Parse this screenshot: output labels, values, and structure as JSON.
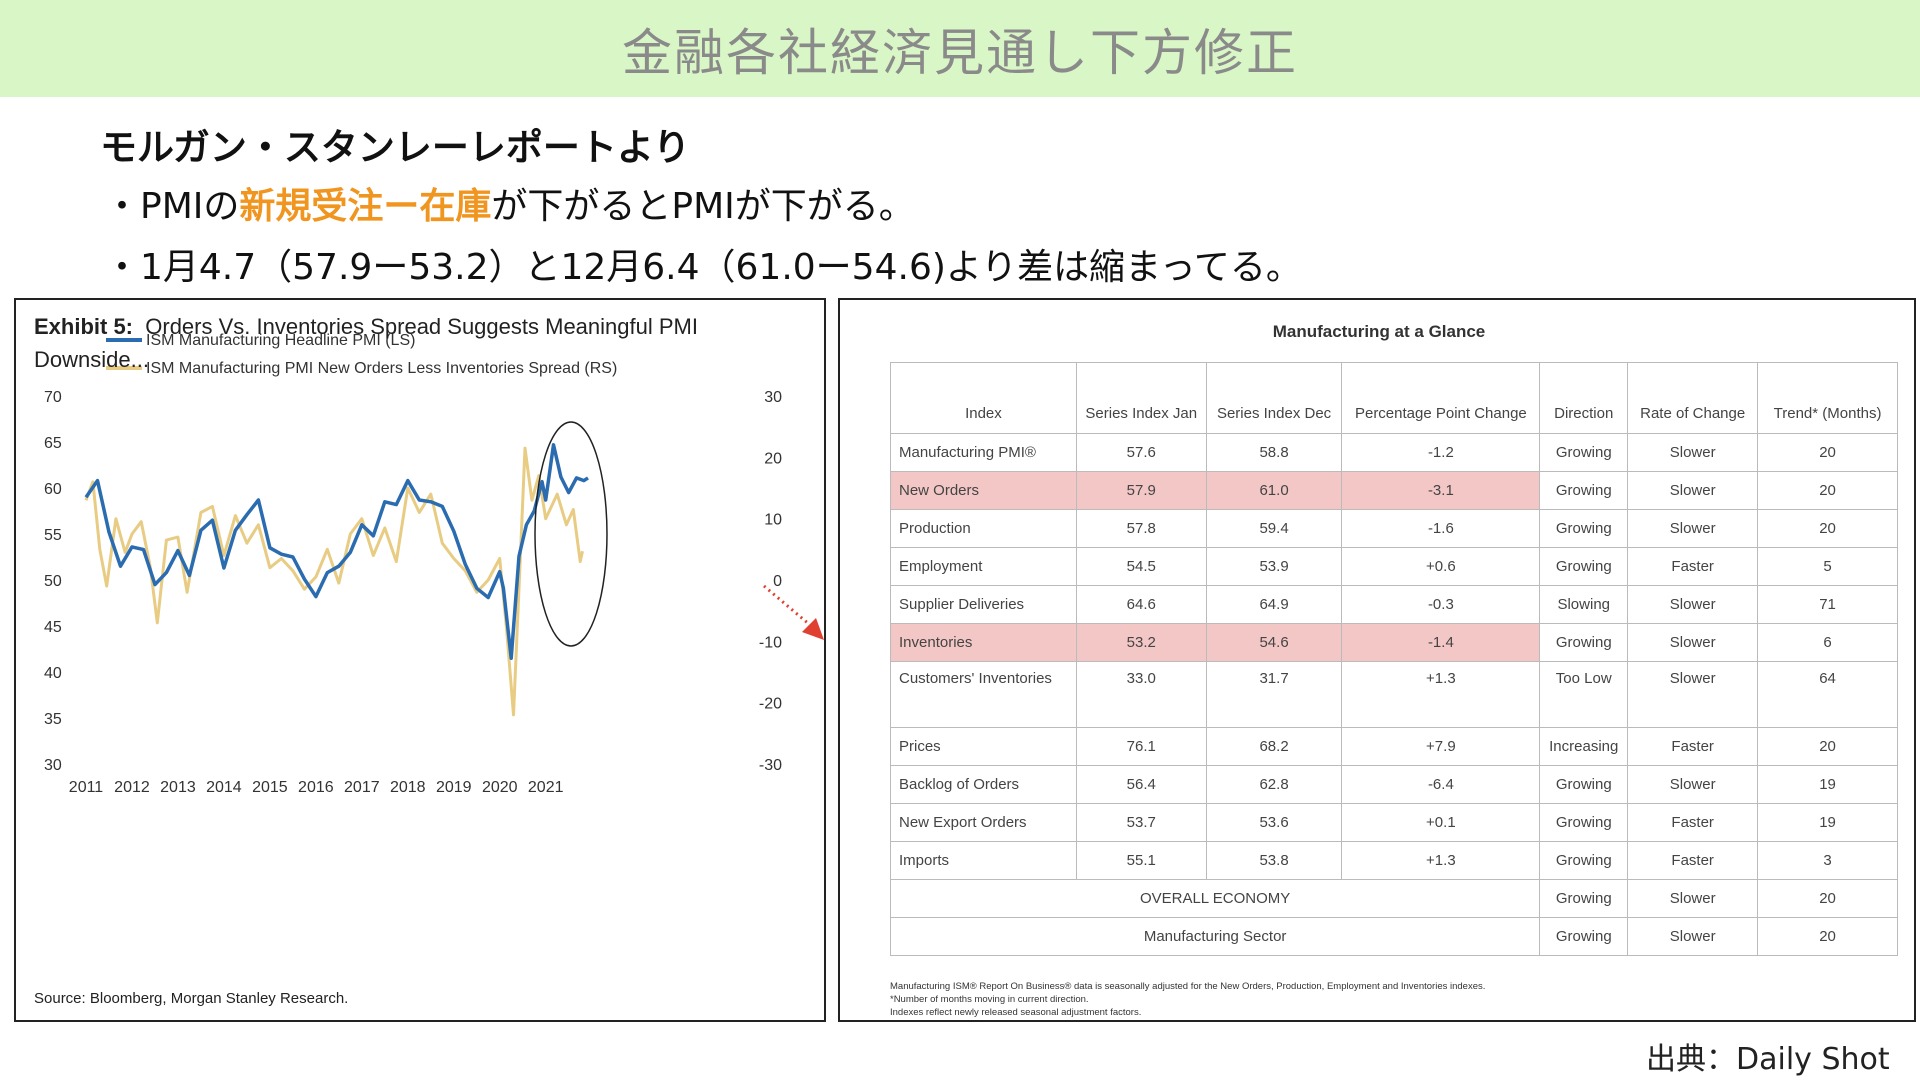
{
  "banner": {
    "title": "金融各社経済見通し下方修正"
  },
  "intro": {
    "lead": "モルガン・スタンレーレポートより",
    "bullet1": {
      "pre": "・PMIの",
      "highlight": "新規受注ー在庫",
      "post": "が下がるとPMIが下がる。"
    },
    "bullet2": "・1月4.7（57.9ー53.2）と12月6.4（61.0ー54.6)より差は縮まってる。"
  },
  "chart_data": {
    "type": "line",
    "title_bold": "Exhibit 5:",
    "title": "Orders Vs. Inventories Spread Suggests Meaningful PMI Downside...",
    "source": "Source: Bloomberg, Morgan Stanley Research.",
    "x_ticks": [
      "2011",
      "2012",
      "2013",
      "2014",
      "2015",
      "2016",
      "2017",
      "2018",
      "2019",
      "2020",
      "2021"
    ],
    "y_left": {
      "lim": [
        30,
        70
      ],
      "ticks": [
        "70",
        "65",
        "60",
        "55",
        "50",
        "45",
        "40",
        "35",
        "30"
      ]
    },
    "y_right": {
      "lim": [
        -30,
        30
      ],
      "ticks": [
        "30",
        "20",
        "10",
        "0",
        "-10",
        "-20",
        "-30"
      ]
    },
    "series": [
      {
        "name": "ISM Manufacturing Headline PMI (LS)",
        "color": "#2b6cb0",
        "axis": "left",
        "points": [
          [
            2011.0,
            59.0
          ],
          [
            2011.25,
            60.8
          ],
          [
            2011.5,
            55.2
          ],
          [
            2011.75,
            51.5
          ],
          [
            2012.0,
            53.6
          ],
          [
            2012.25,
            53.3
          ],
          [
            2012.5,
            49.5
          ],
          [
            2012.75,
            50.8
          ],
          [
            2013.0,
            53.2
          ],
          [
            2013.25,
            50.5
          ],
          [
            2013.5,
            55.4
          ],
          [
            2013.75,
            56.5
          ],
          [
            2014.0,
            51.3
          ],
          [
            2014.25,
            55.4
          ],
          [
            2014.5,
            57.1
          ],
          [
            2014.75,
            58.7
          ],
          [
            2015.0,
            53.5
          ],
          [
            2015.25,
            52.8
          ],
          [
            2015.5,
            52.5
          ],
          [
            2015.75,
            50.1
          ],
          [
            2016.0,
            48.2
          ],
          [
            2016.25,
            50.8
          ],
          [
            2016.5,
            51.5
          ],
          [
            2016.75,
            53.0
          ],
          [
            2017.0,
            56.0
          ],
          [
            2017.25,
            54.8
          ],
          [
            2017.5,
            58.5
          ],
          [
            2017.75,
            58.2
          ],
          [
            2018.0,
            60.8
          ],
          [
            2018.25,
            58.7
          ],
          [
            2018.5,
            58.5
          ],
          [
            2018.75,
            58.0
          ],
          [
            2019.0,
            55.3
          ],
          [
            2019.25,
            51.7
          ],
          [
            2019.5,
            49.1
          ],
          [
            2019.75,
            48.1
          ],
          [
            2020.0,
            50.9
          ],
          [
            2020.08,
            49.1
          ],
          [
            2020.25,
            41.5
          ],
          [
            2020.42,
            52.6
          ],
          [
            2020.58,
            56.0
          ],
          [
            2020.75,
            57.5
          ],
          [
            2020.92,
            60.7
          ],
          [
            2021.0,
            58.7
          ],
          [
            2021.17,
            64.7
          ],
          [
            2021.33,
            61.2
          ],
          [
            2021.5,
            59.5
          ],
          [
            2021.67,
            61.1
          ],
          [
            2021.83,
            60.8
          ],
          [
            2021.92,
            61.1
          ]
        ]
      },
      {
        "name": "ISM Manufacturing PMI New Orders Less Inventories Spread (RS)",
        "color": "#e8cc84",
        "axis": "right",
        "points": [
          [
            2011.0,
            13.0
          ],
          [
            2011.15,
            16.0
          ],
          [
            2011.3,
            5.0
          ],
          [
            2011.45,
            -1.0
          ],
          [
            2011.65,
            10.0
          ],
          [
            2011.85,
            4.5
          ],
          [
            2012.0,
            7.5
          ],
          [
            2012.2,
            9.5
          ],
          [
            2012.4,
            2.0
          ],
          [
            2012.55,
            -7.0
          ],
          [
            2012.75,
            6.5
          ],
          [
            2013.0,
            7.0
          ],
          [
            2013.2,
            -2.0
          ],
          [
            2013.5,
            11.0
          ],
          [
            2013.75,
            12.0
          ],
          [
            2014.0,
            4.0
          ],
          [
            2014.25,
            10.5
          ],
          [
            2014.5,
            6.0
          ],
          [
            2014.75,
            9.0
          ],
          [
            2015.0,
            2.0
          ],
          [
            2015.25,
            3.5
          ],
          [
            2015.5,
            1.5
          ],
          [
            2015.75,
            -1.5
          ],
          [
            2016.0,
            0.5
          ],
          [
            2016.25,
            5.0
          ],
          [
            2016.5,
            -0.5
          ],
          [
            2016.75,
            7.5
          ],
          [
            2017.0,
            10.0
          ],
          [
            2017.25,
            4.0
          ],
          [
            2017.5,
            8.5
          ],
          [
            2017.75,
            3.0
          ],
          [
            2018.0,
            15.0
          ],
          [
            2018.25,
            11.0
          ],
          [
            2018.5,
            14.0
          ],
          [
            2018.75,
            6.0
          ],
          [
            2019.0,
            3.5
          ],
          [
            2019.25,
            1.5
          ],
          [
            2019.5,
            -2.0
          ],
          [
            2019.75,
            0.0
          ],
          [
            2020.0,
            3.5
          ],
          [
            2020.15,
            -8.0
          ],
          [
            2020.3,
            -22.0
          ],
          [
            2020.45,
            4.0
          ],
          [
            2020.55,
            21.5
          ],
          [
            2020.7,
            13.0
          ],
          [
            2020.85,
            17.0
          ],
          [
            2021.0,
            10.0
          ],
          [
            2021.25,
            14.0
          ],
          [
            2021.45,
            9.0
          ],
          [
            2021.6,
            11.5
          ],
          [
            2021.75,
            3.0
          ],
          [
            2021.8,
            4.7
          ]
        ]
      }
    ]
  },
  "table": {
    "title": "Manufacturing at a Glance",
    "headers": [
      "Index",
      "Series Index Jan",
      "Series Index Dec",
      "Percentage Point Change",
      "Direction",
      "Rate of Change",
      "Trend* (Months)"
    ],
    "rows": [
      [
        "Manufacturing PMI®",
        "57.6",
        "58.8",
        "-1.2",
        "Growing",
        "Slower",
        "20"
      ],
      [
        "New Orders",
        "57.9",
        "61.0",
        "-3.1",
        "Growing",
        "Slower",
        "20"
      ],
      [
        "Production",
        "57.8",
        "59.4",
        "-1.6",
        "Growing",
        "Slower",
        "20"
      ],
      [
        "Employment",
        "54.5",
        "53.9",
        "+0.6",
        "Growing",
        "Faster",
        "5"
      ],
      [
        "Supplier Deliveries",
        "64.6",
        "64.9",
        "-0.3",
        "Slowing",
        "Slower",
        "71"
      ],
      [
        "Inventories",
        "53.2",
        "54.6",
        "-1.4",
        "Growing",
        "Slower",
        "6"
      ],
      [
        "Customers' Inventories",
        "33.0",
        "31.7",
        "+1.3",
        "Too Low",
        "Slower",
        "64"
      ],
      [
        "Prices",
        "76.1",
        "68.2",
        "+7.9",
        "Increasing",
        "Faster",
        "20"
      ],
      [
        "Backlog of Orders",
        "56.4",
        "62.8",
        "-6.4",
        "Growing",
        "Slower",
        "19"
      ],
      [
        "New Export Orders",
        "53.7",
        "53.6",
        "+0.1",
        "Growing",
        "Faster",
        "19"
      ],
      [
        "Imports",
        "55.1",
        "53.8",
        "+1.3",
        "Growing",
        "Faster",
        "3"
      ]
    ],
    "summary": [
      [
        "OVERALL ECONOMY",
        "Growing",
        "Slower",
        "20"
      ],
      [
        "Manufacturing Sector",
        "Growing",
        "Slower",
        "20"
      ]
    ],
    "footnotes": [
      "Manufacturing ISM® Report On Business® data is seasonally adjusted for the New Orders, Production, Employment and Inventories indexes.",
      "*Number of months moving in current direction.",
      "Indexes reflect newly released seasonal adjustment factors."
    ],
    "highlight_color": "#f4c7c7"
  },
  "credit": "出典：Daily Shot"
}
